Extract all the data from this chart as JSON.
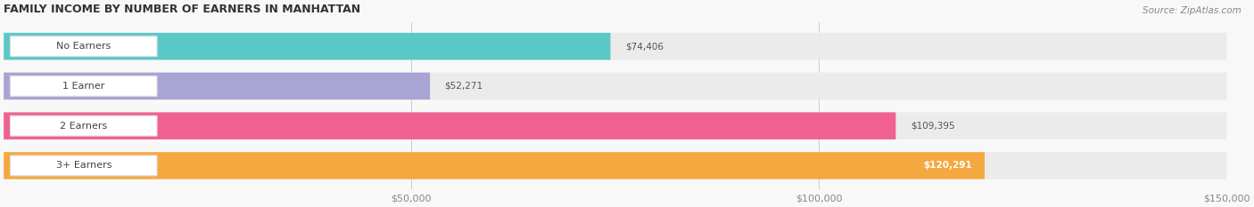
{
  "title": "FAMILY INCOME BY NUMBER OF EARNERS IN MANHATTAN",
  "source": "Source: ZipAtlas.com",
  "categories": [
    "No Earners",
    "1 Earner",
    "2 Earners",
    "3+ Earners"
  ],
  "values": [
    74406,
    52271,
    109395,
    120291
  ],
  "bar_colors": [
    "#5BC8C8",
    "#A8A4D4",
    "#F06090",
    "#F5A840"
  ],
  "bar_bg_color": "#EBEBEB",
  "background_color": "#F8F8F8",
  "xlim": [
    0,
    150000
  ],
  "xticks": [
    50000,
    100000,
    150000
  ],
  "xtick_labels": [
    "$50,000",
    "$100,000",
    "$150,000"
  ],
  "value_labels": [
    "$74,406",
    "$52,271",
    "$109,395",
    "$120,291"
  ],
  "value_label_inside": [
    false,
    false,
    false,
    true
  ]
}
